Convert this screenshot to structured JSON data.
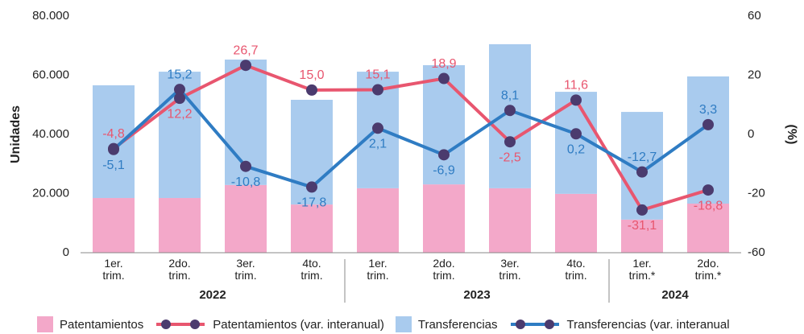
{
  "chart_data": {
    "type": "bar",
    "y_label": "Unidades",
    "y2_label": "(%)",
    "categories": [
      "1er. trim.",
      "2do. trim.",
      "3er. trim.",
      "4to. trim.",
      "1er. trim.",
      "2do. trim.",
      "3er. trim.",
      "4to. trim.",
      "1er. trim.*",
      "2do. trim.*"
    ],
    "groups": [
      {
        "label": "2022",
        "span": [
          0,
          3
        ]
      },
      {
        "label": "2023",
        "span": [
          4,
          7
        ]
      },
      {
        "label": "2024",
        "span": [
          8,
          9
        ]
      }
    ],
    "series": [
      {
        "name": "Patentamientos",
        "type": "bar",
        "color": "#f3a8c9",
        "values": [
          18500,
          18500,
          22900,
          16300,
          21800,
          23100,
          21800,
          19900,
          11200,
          16600
        ]
      },
      {
        "name": "Patentamientos (var. interanual)",
        "type": "line",
        "axis": "y2",
        "color": "#e8566f",
        "values": [
          -4.8,
          12.2,
          26.7,
          15.0,
          15.1,
          18.9,
          -2.5,
          11.6,
          -31.1,
          -18.8
        ],
        "value_labels": [
          "-4,8",
          "12,2",
          "26,7",
          "15,0",
          "15,1",
          "18,9",
          "-2,5",
          "11,6",
          "-31,1",
          "-18,8"
        ]
      },
      {
        "name": "Transferencias",
        "type": "bar",
        "color": "#a9cbee",
        "values": [
          38100,
          42700,
          42400,
          35400,
          39400,
          40300,
          48700,
          34500,
          36400,
          43000
        ]
      },
      {
        "name": "Transferencias (var. interanual",
        "type": "line",
        "axis": "y2",
        "color": "#2f7cc3",
        "values": [
          -5.1,
          15.2,
          -10.8,
          -17.8,
          2.1,
          -6.9,
          8.1,
          0.2,
          -12.7,
          3.3
        ],
        "value_labels": [
          "-5,1",
          "15,2",
          "-10,8",
          "-17,8",
          "2,1",
          "-6,9",
          "8,1",
          "0,2",
          "-12,7",
          "3,3"
        ]
      }
    ],
    "marker_color": "#4b3b6e",
    "ylim": [
      0,
      80000
    ],
    "yticks": [
      0,
      {
        "value": 20000,
        "label": "20.000"
      },
      {
        "value": 40000,
        "label": "40.000"
      },
      {
        "value": 60000,
        "label": "60.000"
      },
      {
        "value": 80000,
        "label": "80.000"
      }
    ],
    "y2lim": [
      -60,
      60
    ],
    "y2ticks": [
      -60,
      -20,
      0,
      20,
      60
    ],
    "grid": false
  }
}
